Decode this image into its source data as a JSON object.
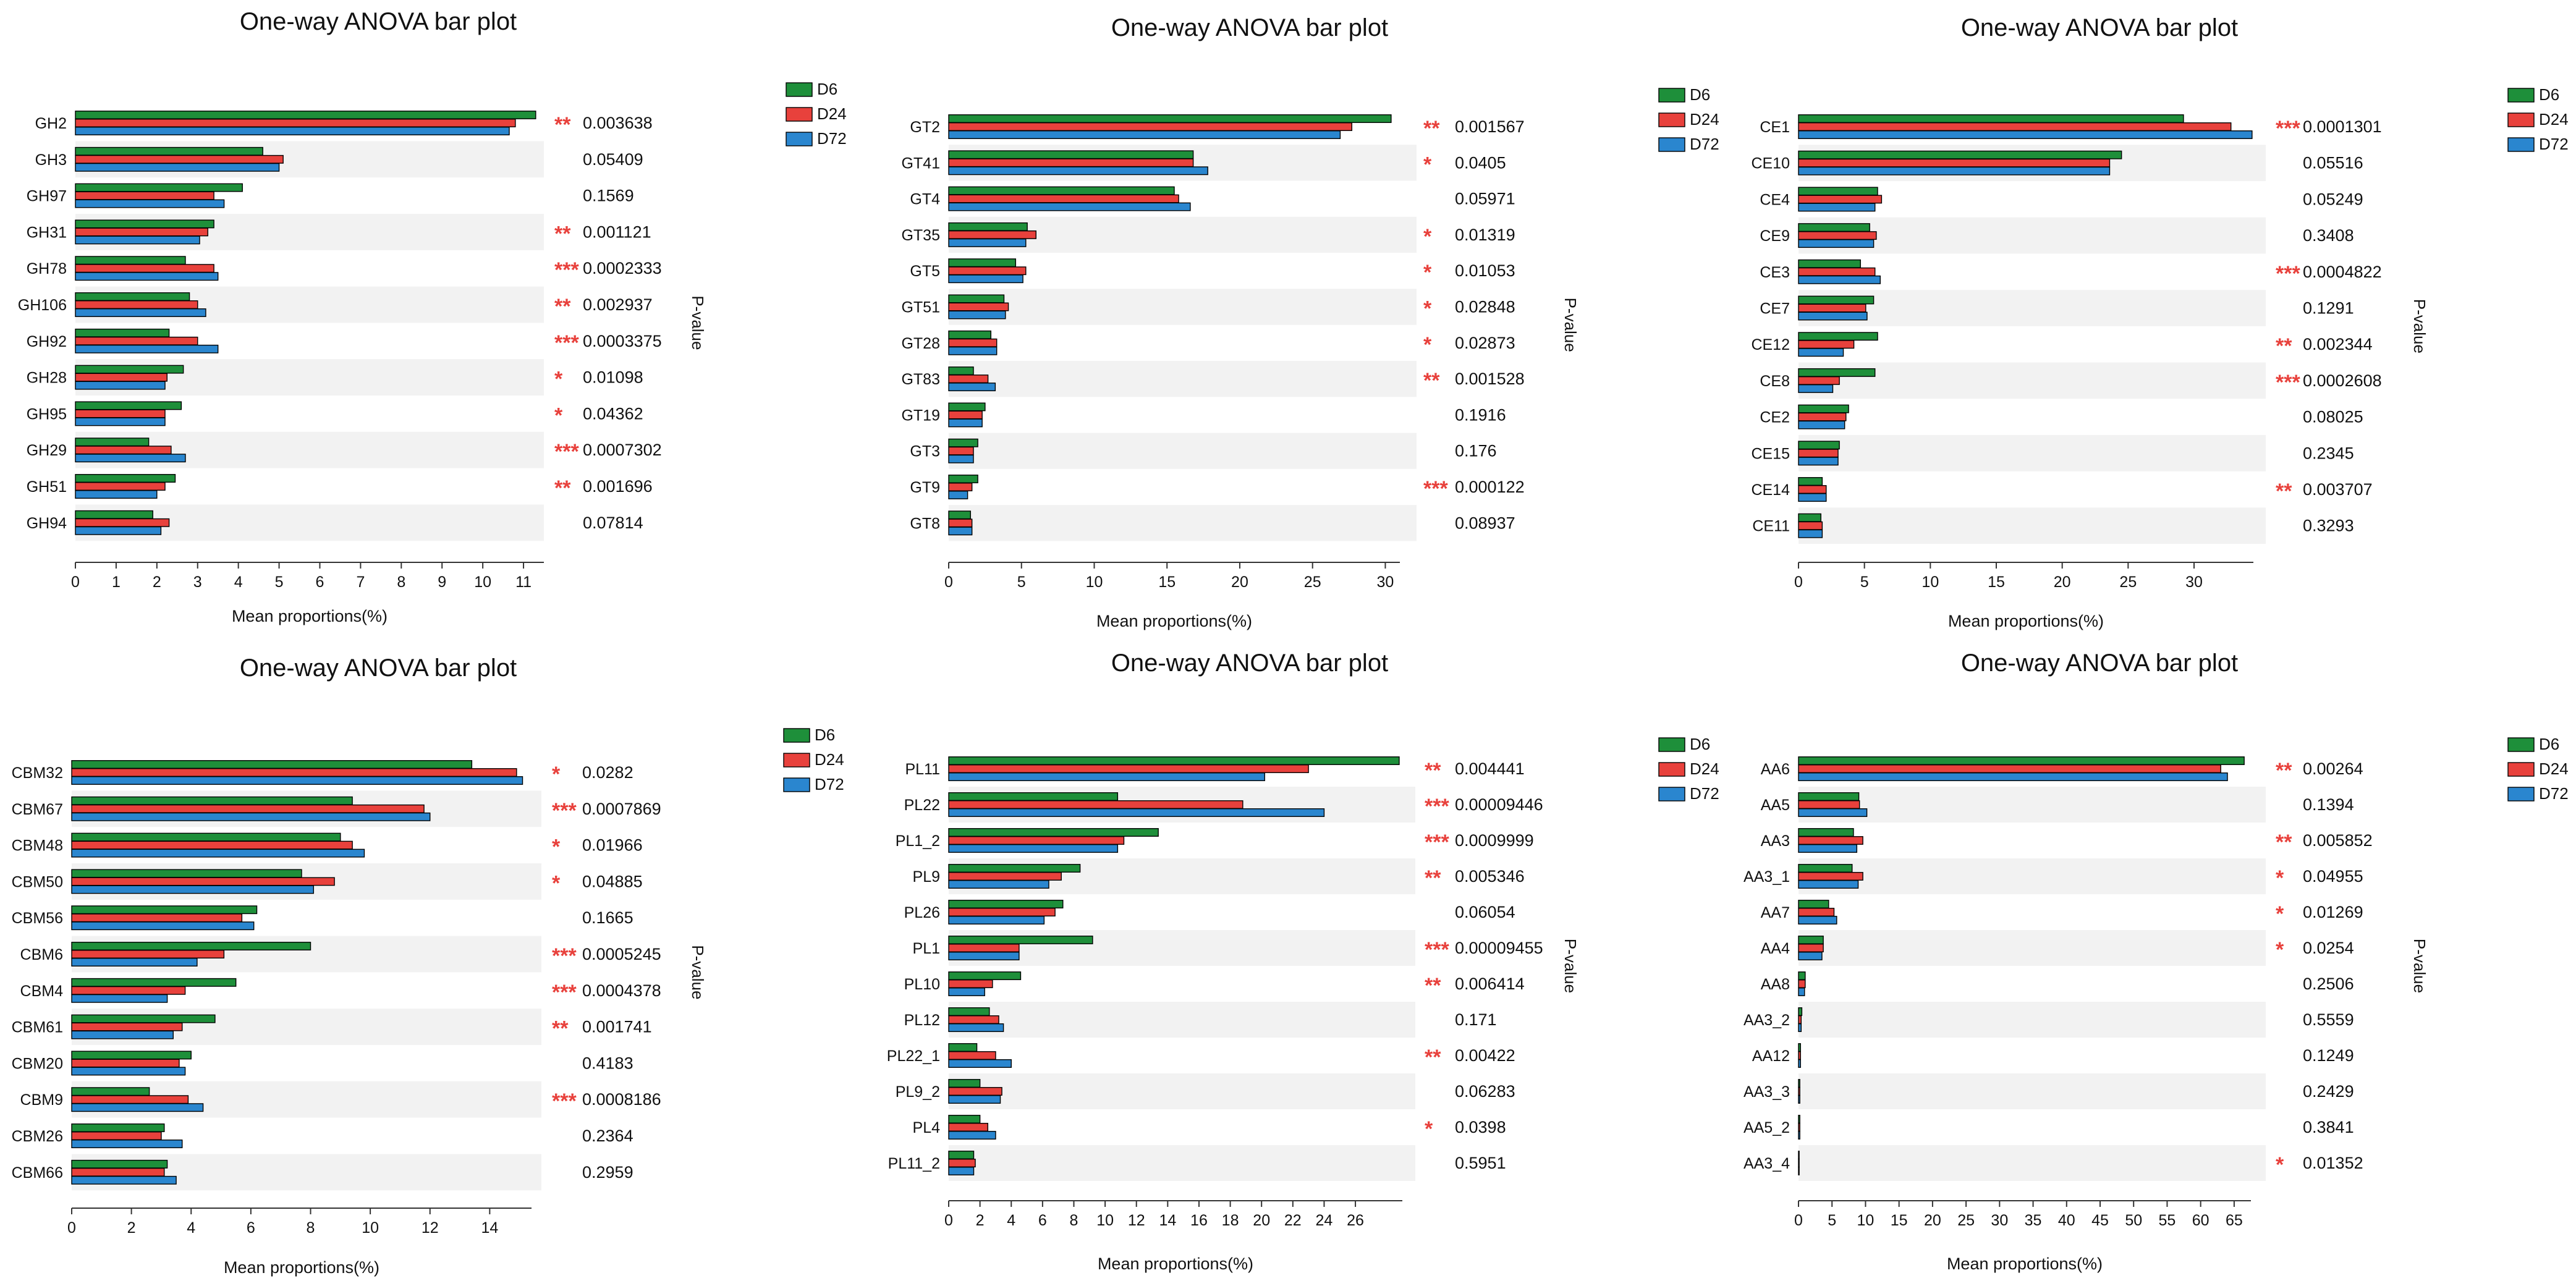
{
  "colors": {
    "D6": "#1e8f3a",
    "D24": "#e8413c",
    "D72": "#2a86cf",
    "stripe": "#f2f2f2",
    "star": "#e8413c",
    "text": "#111111",
    "axis": "#333333"
  },
  "chart_data": [
    {
      "type": "bar",
      "orientation": "horizontal",
      "title": "One-way ANOVA bar plot",
      "xlabel": "Mean proportions(%)",
      "pvalue_label": "P-value",
      "legend": [
        "D6",
        "D24",
        "D72"
      ],
      "xlim": [
        0,
        11.5
      ],
      "xticks": [
        "0",
        "1",
        "2",
        "3",
        "4",
        "5",
        "6",
        "7",
        "8",
        "9",
        "10",
        "11"
      ],
      "categories": [
        "GH2",
        "GH3",
        "GH97",
        "GH31",
        "GH78",
        "GH106",
        "GH92",
        "GH28",
        "GH95",
        "GH29",
        "GH51",
        "GH94"
      ],
      "series": [
        {
          "name": "D6",
          "values": [
            11.3,
            4.6,
            4.1,
            3.4,
            2.7,
            2.8,
            2.3,
            2.65,
            2.6,
            1.8,
            2.45,
            1.9
          ]
        },
        {
          "name": "D24",
          "values": [
            10.8,
            5.1,
            3.4,
            3.25,
            3.4,
            3.0,
            3.0,
            2.25,
            2.2,
            2.35,
            2.2,
            2.3
          ]
        },
        {
          "name": "D72",
          "values": [
            10.65,
            5.0,
            3.65,
            3.05,
            3.5,
            3.2,
            3.5,
            2.2,
            2.2,
            2.7,
            2.0,
            2.1
          ]
        }
      ],
      "significance": [
        "**",
        "",
        "",
        "**",
        "***",
        "**",
        "***",
        "*",
        "*",
        "***",
        "**",
        ""
      ],
      "pvalues": [
        "0.003638",
        "0.05409",
        "0.1569",
        "0.001121",
        "0.0002333",
        "0.002937",
        "0.0003375",
        "0.01098",
        "0.04362",
        "0.0007302",
        "0.001696",
        "0.07814"
      ]
    },
    {
      "type": "bar",
      "orientation": "horizontal",
      "title": "One-way ANOVA bar plot",
      "xlabel": "Mean proportions(%)",
      "pvalue_label": "P-value",
      "legend": [
        "D6",
        "D24",
        "D72"
      ],
      "xlim": [
        0,
        31
      ],
      "xticks": [
        "0",
        "5",
        "10",
        "15",
        "20",
        "25",
        "30"
      ],
      "categories": [
        "GT2",
        "GT41",
        "GT4",
        "GT35",
        "GT5",
        "GT51",
        "GT28",
        "GT83",
        "GT19",
        "GT3",
        "GT9",
        "GT8"
      ],
      "series": [
        {
          "name": "D6",
          "values": [
            30.4,
            16.8,
            15.5,
            5.4,
            4.6,
            3.8,
            2.9,
            1.7,
            2.5,
            2.0,
            2.0,
            1.5
          ]
        },
        {
          "name": "D24",
          "values": [
            27.7,
            16.8,
            15.8,
            6.0,
            5.3,
            4.1,
            3.3,
            2.7,
            2.3,
            1.7,
            1.6,
            1.6
          ]
        },
        {
          "name": "D72",
          "values": [
            26.9,
            17.8,
            16.6,
            5.3,
            5.1,
            3.9,
            3.3,
            3.2,
            2.3,
            1.7,
            1.3,
            1.6
          ]
        }
      ],
      "significance": [
        "**",
        "*",
        "",
        "*",
        "*",
        "*",
        "*",
        "**",
        "",
        "",
        "***",
        ""
      ],
      "pvalues": [
        "0.001567",
        "0.0405",
        "0.05971",
        "0.01319",
        "0.01053",
        "0.02848",
        "0.02873",
        "0.001528",
        "0.1916",
        "0.176",
        "0.000122",
        "0.08937"
      ]
    },
    {
      "type": "bar",
      "orientation": "horizontal",
      "title": "One-way ANOVA bar plot",
      "xlabel": "Mean proportions(%)",
      "pvalue_label": "P-value",
      "legend": [
        "D6",
        "D24",
        "D72"
      ],
      "xlim": [
        0,
        34.5
      ],
      "xticks": [
        "0",
        "5",
        "10",
        "15",
        "20",
        "25",
        "30"
      ],
      "categories": [
        "CE1",
        "CE10",
        "CE4",
        "CE9",
        "CE3",
        "CE7",
        "CE12",
        "CE8",
        "CE2",
        "CE15",
        "CE14",
        "CE11"
      ],
      "series": [
        {
          "name": "D6",
          "values": [
            29.2,
            24.5,
            6.0,
            5.4,
            4.7,
            5.7,
            6.0,
            5.8,
            3.8,
            3.1,
            1.8,
            1.7
          ]
        },
        {
          "name": "D24",
          "values": [
            32.8,
            23.6,
            6.3,
            5.9,
            5.8,
            5.1,
            4.2,
            3.1,
            3.6,
            3.0,
            2.1,
            1.8
          ]
        },
        {
          "name": "D72",
          "values": [
            34.4,
            23.6,
            5.8,
            5.7,
            6.2,
            5.2,
            3.4,
            2.6,
            3.5,
            3.0,
            2.1,
            1.8
          ]
        }
      ],
      "significance": [
        "***",
        "",
        "",
        "",
        "***",
        "",
        "**",
        "***",
        "",
        "",
        "**",
        ""
      ],
      "pvalues": [
        "0.0001301",
        "0.05516",
        "0.05249",
        "0.3408",
        "0.0004822",
        "0.1291",
        "0.002344",
        "0.0002608",
        "0.08025",
        "0.2345",
        "0.003707",
        "0.3293"
      ]
    },
    {
      "type": "bar",
      "orientation": "horizontal",
      "title": "One-way ANOVA bar plot",
      "xlabel": "Mean proportions(%)",
      "pvalue_label": "P-value",
      "legend": [
        "D6",
        "D24",
        "D72"
      ],
      "xlim": [
        0,
        15.4
      ],
      "xticks": [
        "0",
        "2",
        "4",
        "6",
        "8",
        "10",
        "12",
        "14"
      ],
      "categories": [
        "CBM32",
        "CBM67",
        "CBM48",
        "CBM50",
        "CBM56",
        "CBM6",
        "CBM4",
        "CBM61",
        "CBM20",
        "CBM9",
        "CBM26",
        "CBM66"
      ],
      "series": [
        {
          "name": "D6",
          "values": [
            13.4,
            9.4,
            9.0,
            7.7,
            6.2,
            8.0,
            5.5,
            4.8,
            4.0,
            2.6,
            3.1,
            3.2
          ]
        },
        {
          "name": "D24",
          "values": [
            14.9,
            11.8,
            9.4,
            8.8,
            5.7,
            5.1,
            3.8,
            3.7,
            3.6,
            3.9,
            3.0,
            3.1
          ]
        },
        {
          "name": "D72",
          "values": [
            15.1,
            12.0,
            9.8,
            8.1,
            6.1,
            4.2,
            3.2,
            3.4,
            3.8,
            4.4,
            3.7,
            3.5
          ]
        }
      ],
      "significance": [
        "*",
        "***",
        "*",
        "*",
        "",
        "***",
        "***",
        "**",
        "",
        "***",
        "",
        ""
      ],
      "pvalues": [
        "0.0282",
        "0.0007869",
        "0.01966",
        "0.04885",
        "0.1665",
        "0.0005245",
        "0.0004378",
        "0.001741",
        "0.4183",
        "0.0008186",
        "0.2364",
        "0.2959"
      ]
    },
    {
      "type": "bar",
      "orientation": "horizontal",
      "title": "One-way ANOVA bar plot",
      "xlabel": "Mean proportions(%)",
      "pvalue_label": "P-value",
      "legend": [
        "D6",
        "D24",
        "D72"
      ],
      "xlim": [
        0,
        29
      ],
      "xticks": [
        "0",
        "2",
        "4",
        "6",
        "8",
        "10",
        "12",
        "14",
        "16",
        "18",
        "20",
        "22",
        "24",
        "26"
      ],
      "categories": [
        "PL11",
        "PL22",
        "PL1_2",
        "PL9",
        "PL26",
        "PL1",
        "PL10",
        "PL12",
        "PL22_1",
        "PL9_2",
        "PL4",
        "PL11_2"
      ],
      "series": [
        {
          "name": "D6",
          "values": [
            28.8,
            10.8,
            13.4,
            8.4,
            7.3,
            9.2,
            4.6,
            2.6,
            1.8,
            2.0,
            2.0,
            1.6
          ]
        },
        {
          "name": "D24",
          "values": [
            23.0,
            18.8,
            11.2,
            7.2,
            6.8,
            4.5,
            2.8,
            3.2,
            3.0,
            3.4,
            2.5,
            1.7
          ]
        },
        {
          "name": "D72",
          "values": [
            20.2,
            24.0,
            10.8,
            6.4,
            6.1,
            4.5,
            2.3,
            3.5,
            4.0,
            3.3,
            3.0,
            1.6
          ]
        }
      ],
      "significance": [
        "**",
        "***",
        "***",
        "**",
        "",
        "***",
        "**",
        "",
        "**",
        "",
        "*",
        ""
      ],
      "pvalues": [
        "0.004441",
        "0.00009446",
        "0.0009999",
        "0.005346",
        "0.06054",
        "0.00009455",
        "0.006414",
        "0.171",
        "0.00422",
        "0.06283",
        "0.0398",
        "0.5951"
      ]
    },
    {
      "type": "bar",
      "orientation": "horizontal",
      "title": "One-way ANOVA bar plot",
      "xlabel": "Mean proportions(%)",
      "pvalue_label": "P-value",
      "legend": [
        "D6",
        "D24",
        "D72"
      ],
      "xlim": [
        0,
        67.5
      ],
      "xticks": [
        "0",
        "5",
        "10",
        "15",
        "20",
        "25",
        "30",
        "35",
        "40",
        "45",
        "50",
        "55",
        "60",
        "65"
      ],
      "categories": [
        "AA6",
        "AA5",
        "AA3",
        "AA3_1",
        "AA7",
        "AA4",
        "AA8",
        "AA3_2",
        "AA12",
        "AA3_3",
        "AA5_2",
        "AA3_4"
      ],
      "series": [
        {
          "name": "D6",
          "values": [
            66.5,
            9.0,
            8.2,
            8.0,
            4.5,
            3.7,
            1.0,
            0.5,
            0.3,
            0.2,
            0.2,
            0.1
          ]
        },
        {
          "name": "D24",
          "values": [
            63.0,
            9.1,
            9.6,
            9.6,
            5.3,
            3.7,
            1.0,
            0.4,
            0.3,
            0.2,
            0.2,
            0.1
          ]
        },
        {
          "name": "D72",
          "values": [
            64.0,
            10.2,
            8.7,
            8.9,
            5.7,
            3.5,
            0.9,
            0.4,
            0.3,
            0.2,
            0.2,
            0.1
          ]
        }
      ],
      "significance": [
        "**",
        "",
        "**",
        "*",
        "*",
        "*",
        "",
        "",
        "",
        "",
        "",
        "*"
      ],
      "pvalues": [
        "0.00264",
        "0.1394",
        "0.005852",
        "0.04955",
        "0.01269",
        "0.0254",
        "0.2506",
        "0.5559",
        "0.1249",
        "0.2429",
        "0.3841",
        "0.01352"
      ]
    }
  ]
}
